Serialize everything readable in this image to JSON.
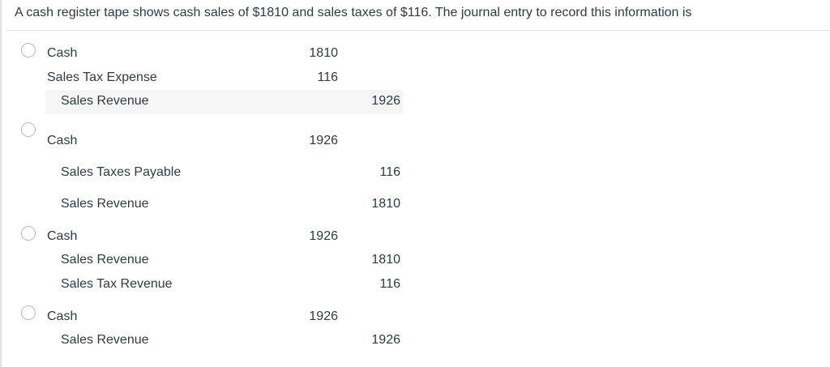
{
  "question": {
    "text": "A cash register tape shows cash sales of $1810 and sales taxes of $116. The journal entry to record this information is"
  },
  "answers": [
    {
      "lines": [
        {
          "account": "Cash",
          "debit": "1810",
          "credit": ""
        },
        {
          "account": "Sales Tax Expense",
          "debit": "116",
          "credit": ""
        },
        {
          "account": "Sales Revenue",
          "debit": "",
          "credit": "1926"
        }
      ]
    },
    {
      "lines": [
        {
          "account": "Cash",
          "debit": "1926",
          "credit": ""
        },
        {
          "account": "Sales Taxes Payable",
          "debit": "",
          "credit": "116"
        },
        {
          "account": "Sales Revenue",
          "debit": "",
          "credit": "1810"
        }
      ]
    },
    {
      "lines": [
        {
          "account": "Cash",
          "debit": "1926",
          "credit": ""
        },
        {
          "account": "Sales Revenue",
          "debit": "",
          "credit": "1810"
        },
        {
          "account": "Sales Tax Revenue",
          "debit": "",
          "credit": "116"
        }
      ]
    },
    {
      "lines": [
        {
          "account": "Cash",
          "debit": "1926",
          "credit": ""
        },
        {
          "account": "Sales Revenue",
          "debit": "",
          "credit": "1926"
        }
      ]
    }
  ]
}
